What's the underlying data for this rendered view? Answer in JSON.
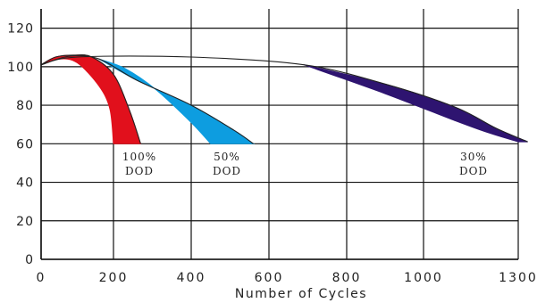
{
  "chart_data": {
    "type": "area",
    "title": "",
    "xlabel": "Number of Cycles",
    "ylabel": "",
    "ylim": [
      0,
      130
    ],
    "yticks": [
      "0",
      "20",
      "40",
      "60",
      "80",
      "100",
      "120"
    ],
    "xticks": [
      "0",
      "200",
      "400",
      "600",
      "800",
      "1000",
      "1300"
    ],
    "grid": true,
    "series": [
      {
        "annotation": [
          "100%",
          "DOD"
        ],
        "color": "#e1101c",
        "upper": [
          [
            0,
            101
          ],
          [
            40,
            105
          ],
          [
            90,
            106
          ],
          [
            140,
            105
          ],
          [
            200,
            96
          ],
          [
            240,
            78
          ],
          [
            270,
            60
          ]
        ],
        "lower": [
          [
            0,
            101
          ],
          [
            50,
            104
          ],
          [
            100,
            102
          ],
          [
            160,
            90
          ],
          [
            190,
            78
          ],
          [
            200,
            60
          ]
        ]
      },
      {
        "annotation": [
          "50%",
          "DOD"
        ],
        "color": "#0d9de0",
        "upper": [
          [
            0,
            101
          ],
          [
            80,
            105.5
          ],
          [
            160,
            104
          ],
          [
            260,
            93
          ],
          [
            400,
            80
          ],
          [
            510,
            67
          ],
          [
            560,
            60
          ]
        ],
        "lower": [
          [
            0,
            101
          ],
          [
            80,
            105.5
          ],
          [
            160,
            104
          ],
          [
            230,
            99
          ],
          [
            310,
            88
          ],
          [
            400,
            71
          ],
          [
            450,
            60
          ]
        ]
      },
      {
        "annotation": [
          "30%",
          "DOD"
        ],
        "color": "#2e1470",
        "upper": [
          [
            0,
            101
          ],
          [
            100,
            105
          ],
          [
            400,
            105
          ],
          [
            690,
            101
          ],
          [
            900,
            91
          ],
          [
            1100,
            79
          ],
          [
            1230,
            68
          ],
          [
            1330,
            61
          ]
        ],
        "lower": [
          [
            0,
            101
          ],
          [
            100,
            105
          ],
          [
            400,
            105
          ],
          [
            690,
            101
          ],
          [
            900,
            86
          ],
          [
            1100,
            72
          ],
          [
            1200,
            66
          ],
          [
            1300,
            61
          ]
        ]
      }
    ]
  }
}
